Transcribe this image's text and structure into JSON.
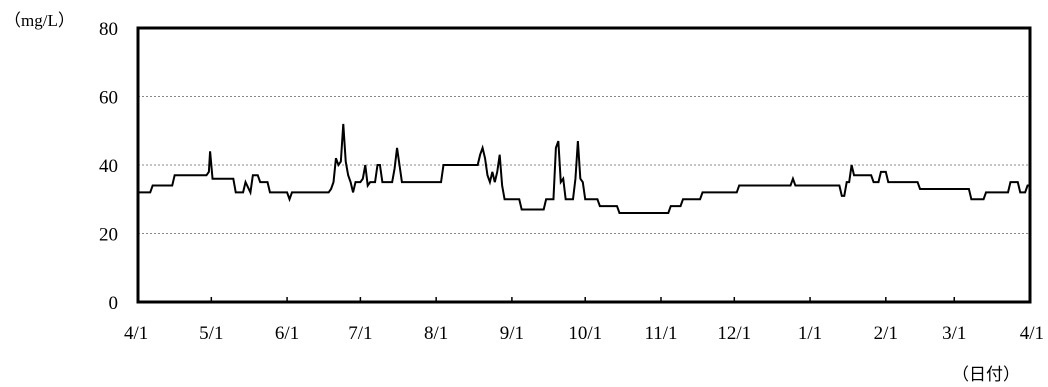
{
  "chart_data": {
    "type": "line",
    "y_unit_label": "（mg/L）",
    "x_unit_label": "（日付）",
    "ylim": [
      0,
      80
    ],
    "y_ticks": [
      "0",
      "20",
      "40",
      "60",
      "80"
    ],
    "x_tick_labels": [
      "4/1",
      "5/1",
      "6/1",
      "7/1",
      "8/1",
      "9/1",
      "10/1",
      "11/1",
      "12/1",
      "1/1",
      "2/1",
      "3/1",
      "4/1"
    ],
    "x_tick_days": [
      0,
      30,
      61,
      91,
      122,
      153,
      183,
      214,
      244,
      275,
      306,
      334,
      365
    ],
    "grid_y": [
      20,
      40,
      60
    ],
    "series": [
      {
        "color": "#000000",
        "points": [
          [
            0,
            32
          ],
          [
            5,
            32
          ],
          [
            6,
            34
          ],
          [
            14,
            34
          ],
          [
            15,
            37
          ],
          [
            28,
            37
          ],
          [
            29,
            38
          ],
          [
            29.5,
            44
          ],
          [
            30.5,
            36
          ],
          [
            39,
            36
          ],
          [
            40,
            32
          ],
          [
            43,
            32
          ],
          [
            44,
            35
          ],
          [
            46,
            32
          ],
          [
            47,
            37
          ],
          [
            49,
            37
          ],
          [
            50,
            35
          ],
          [
            53,
            35
          ],
          [
            54,
            32
          ],
          [
            61,
            32
          ],
          [
            62,
            30
          ],
          [
            63,
            32
          ],
          [
            78,
            32
          ],
          [
            79,
            33
          ],
          [
            80,
            35
          ],
          [
            81,
            42
          ],
          [
            82,
            40
          ],
          [
            83,
            41
          ],
          [
            84,
            52
          ],
          [
            85,
            41
          ],
          [
            86,
            37
          ],
          [
            87,
            35
          ],
          [
            88,
            32
          ],
          [
            89,
            35
          ],
          [
            91,
            35
          ],
          [
            92,
            36
          ],
          [
            93,
            40
          ],
          [
            94,
            34
          ],
          [
            95,
            35
          ],
          [
            97,
            35
          ],
          [
            98,
            40
          ],
          [
            99,
            40
          ],
          [
            100,
            35
          ],
          [
            104,
            35
          ],
          [
            105,
            39
          ],
          [
            106,
            45
          ],
          [
            107,
            40
          ],
          [
            108,
            35
          ],
          [
            124,
            35
          ],
          [
            125,
            40
          ],
          [
            139,
            40
          ],
          [
            140,
            43
          ],
          [
            141,
            45
          ],
          [
            142,
            42
          ],
          [
            143,
            37
          ],
          [
            144,
            35
          ],
          [
            145,
            38
          ],
          [
            146,
            35
          ],
          [
            147,
            38
          ],
          [
            148,
            43
          ],
          [
            149,
            34
          ],
          [
            150,
            30
          ],
          [
            156,
            30
          ],
          [
            157,
            27
          ],
          [
            166,
            27
          ],
          [
            167,
            30
          ],
          [
            170,
            30
          ],
          [
            171,
            45
          ],
          [
            172,
            47
          ],
          [
            173,
            35
          ],
          [
            174,
            36
          ],
          [
            175,
            30
          ],
          [
            178,
            30
          ],
          [
            179,
            36
          ],
          [
            180,
            47
          ],
          [
            181,
            36
          ],
          [
            182,
            35
          ],
          [
            183,
            30
          ],
          [
            188,
            30
          ],
          [
            189,
            28
          ],
          [
            196,
            28
          ],
          [
            197,
            26
          ],
          [
            217,
            26
          ],
          [
            218,
            28
          ],
          [
            222,
            28
          ],
          [
            223,
            30
          ],
          [
            230,
            30
          ],
          [
            231,
            32
          ],
          [
            245,
            32
          ],
          [
            246,
            34
          ],
          [
            267,
            34
          ],
          [
            268,
            36
          ],
          [
            269,
            34
          ],
          [
            287,
            34
          ],
          [
            288,
            31
          ],
          [
            289,
            31
          ],
          [
            290,
            35
          ],
          [
            291,
            35
          ],
          [
            292,
            40
          ],
          [
            293,
            37
          ],
          [
            300,
            37
          ],
          [
            301,
            35
          ],
          [
            303,
            35
          ],
          [
            304,
            38
          ],
          [
            306,
            38
          ],
          [
            307,
            35
          ],
          [
            319,
            35
          ],
          [
            320,
            33
          ],
          [
            340,
            33
          ],
          [
            341,
            30
          ],
          [
            346,
            30
          ],
          [
            347,
            32
          ],
          [
            356,
            32
          ],
          [
            357,
            35
          ],
          [
            360,
            35
          ],
          [
            361,
            32
          ],
          [
            363,
            32
          ],
          [
            364,
            34
          ],
          [
            365,
            34
          ]
        ]
      }
    ]
  }
}
